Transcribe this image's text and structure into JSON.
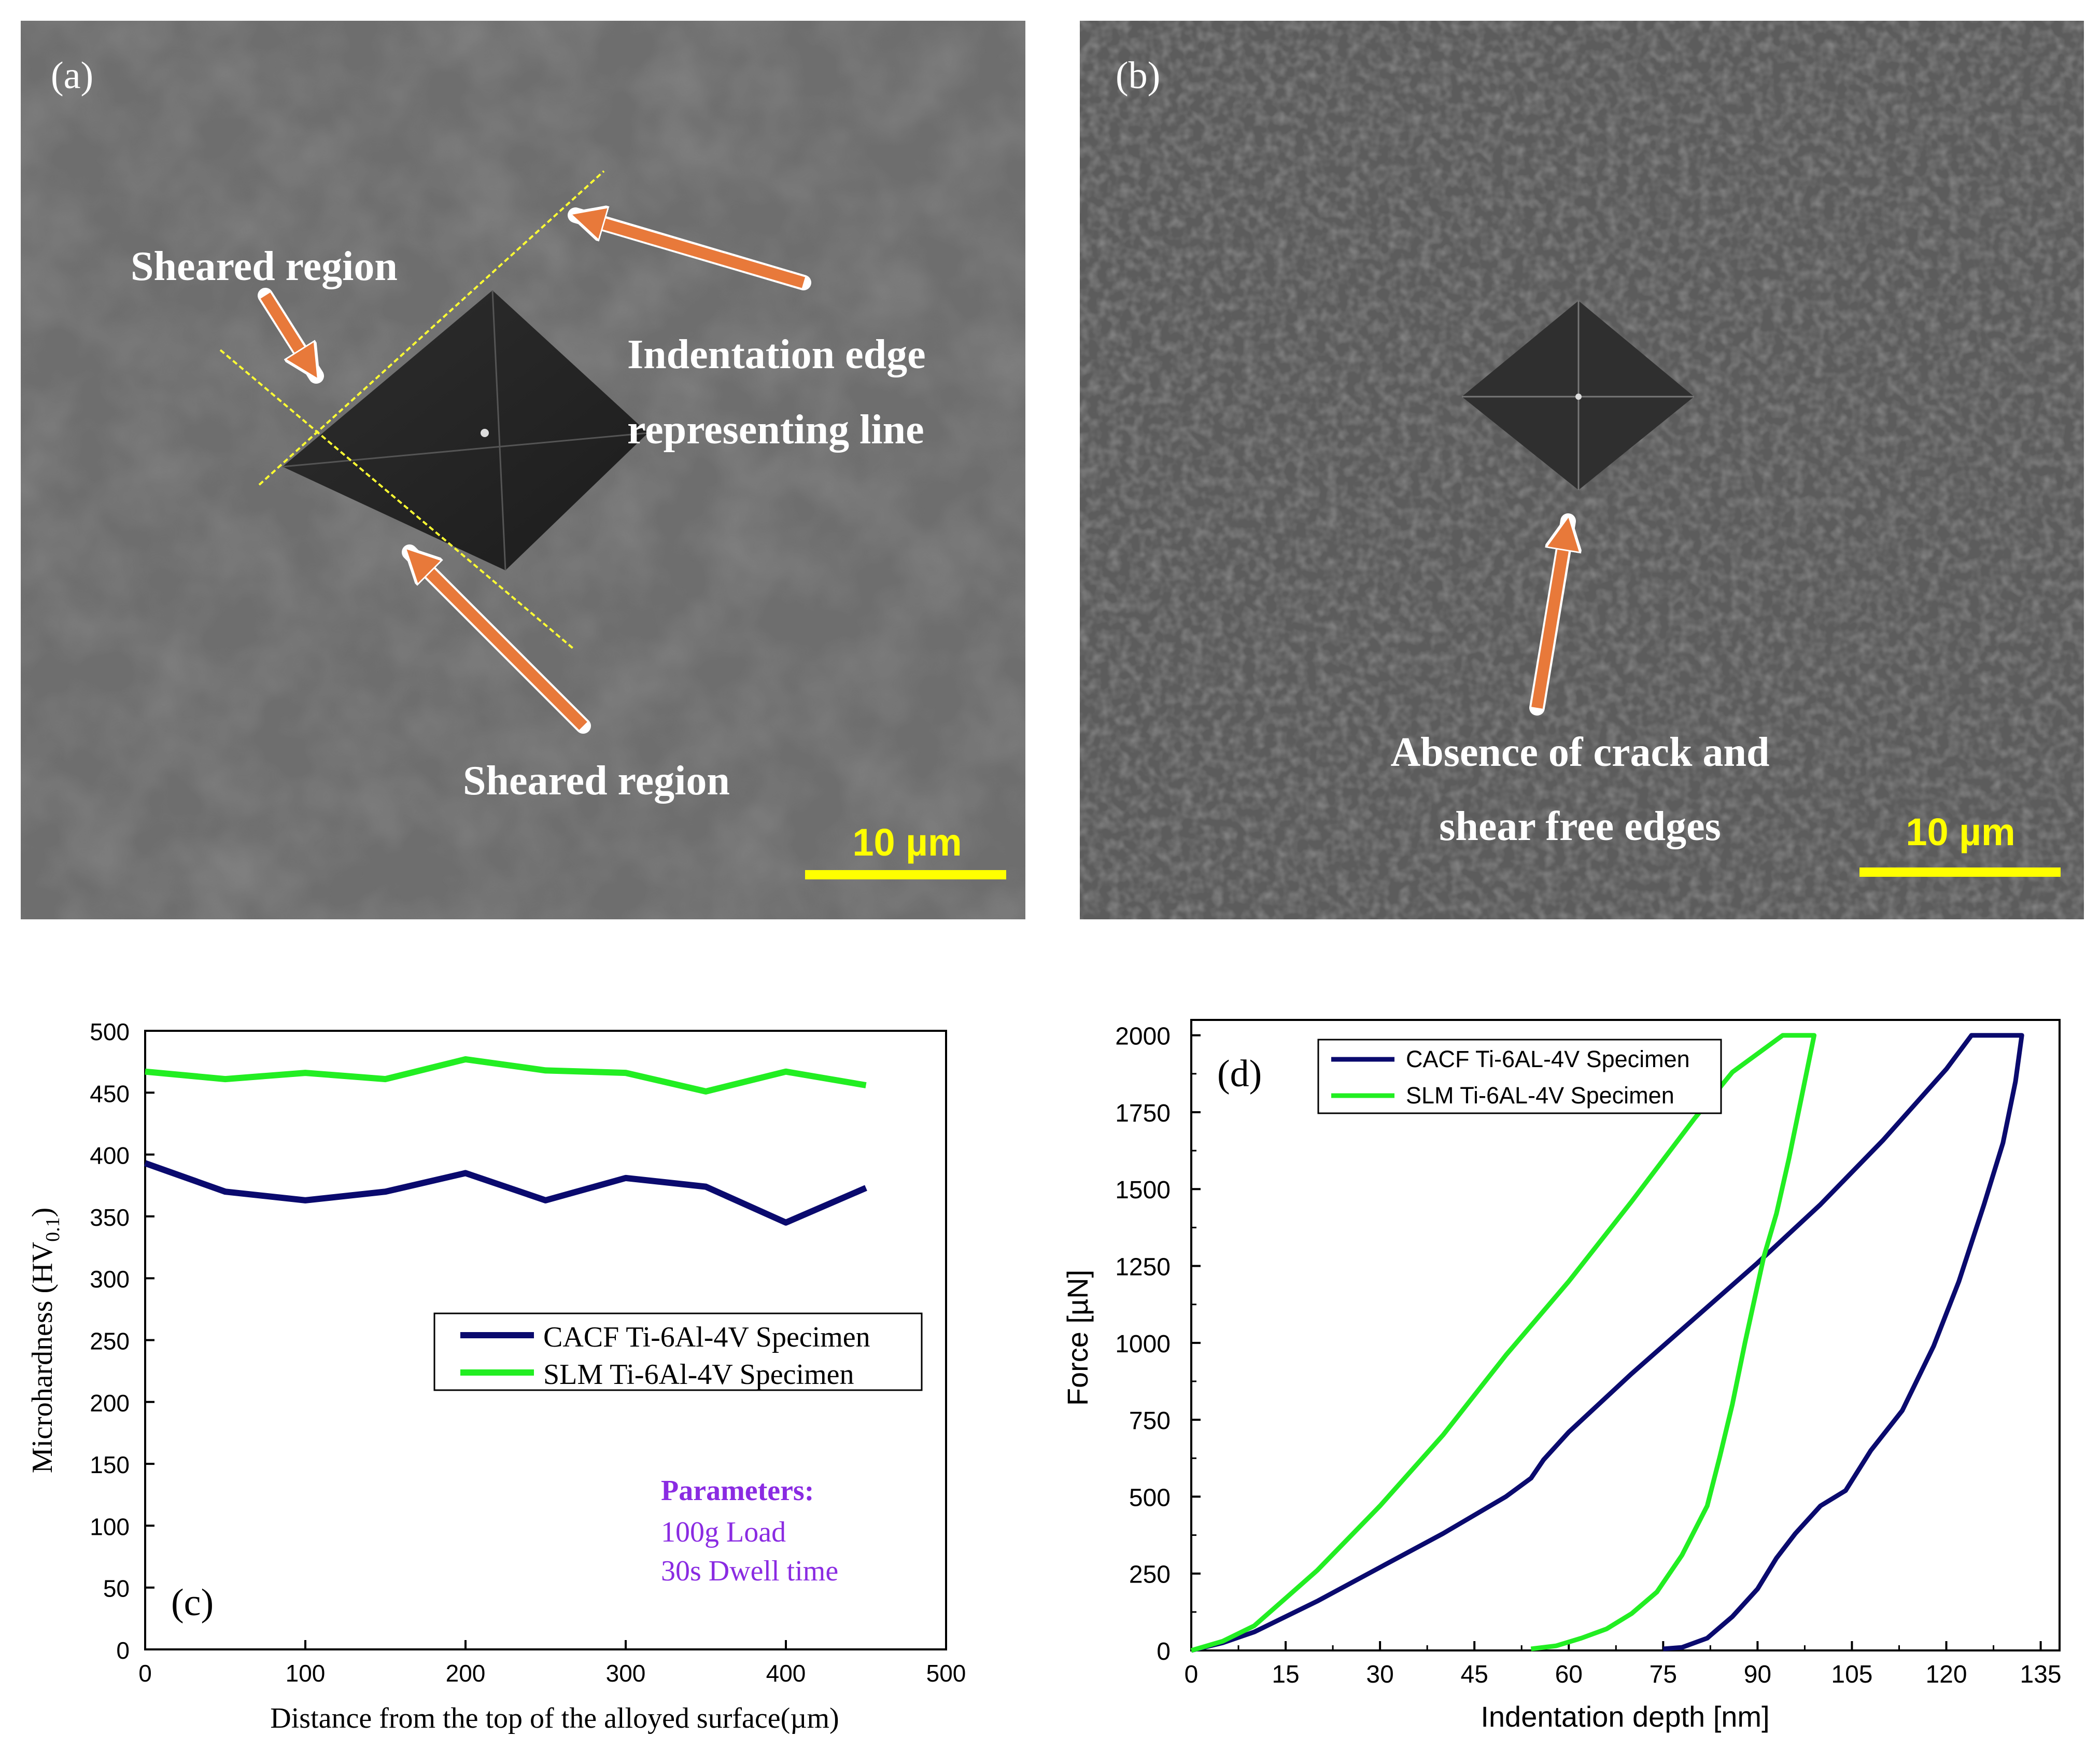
{
  "panel_a": {
    "label": "(a)",
    "annotations": {
      "sheared_top": "Sheared region",
      "edge_line_1": "Indentation edge",
      "edge_line_2": "representing line",
      "sheared_bottom": "Sheared region"
    },
    "scale_bar": "10 µm"
  },
  "panel_b": {
    "label": "(b)",
    "annotations": {
      "line_1": "Absence of crack and",
      "line_2": "shear free edges"
    },
    "scale_bar": "10 µm"
  },
  "chart_data": [
    {
      "type": "line",
      "panel_label": "(c)",
      "xlabel": "Distance from the top of the alloyed surface(µm)",
      "ylabel_main": "Microhardness (HV",
      "ylabel_sub": "0.1",
      "ylabel_close": ")",
      "xlim": [
        0,
        500
      ],
      "ylim": [
        0,
        500
      ],
      "xticks": [
        0,
        100,
        200,
        300,
        400,
        500
      ],
      "yticks": [
        0,
        50,
        100,
        150,
        200,
        250,
        300,
        350,
        400,
        450,
        500
      ],
      "legend": {
        "position": "center-right"
      },
      "series": [
        {
          "name": "CACF Ti-6Al-4V Specimen",
          "color": "#0a0a6e",
          "x": [
            0,
            50,
            100,
            150,
            200,
            250,
            300,
            350,
            400,
            450
          ],
          "y": [
            393,
            370,
            363,
            370,
            385,
            363,
            381,
            374,
            345,
            373
          ]
        },
        {
          "name": "SLM Ti-6Al-4V Specimen",
          "color": "#22ee22",
          "x": [
            0,
            50,
            100,
            150,
            200,
            250,
            300,
            350,
            400,
            450
          ],
          "y": [
            467,
            461,
            466,
            461,
            477,
            468,
            466,
            451,
            467,
            456
          ]
        }
      ],
      "parameters": {
        "title": "Parameters:",
        "line1": "100g  Load",
        "line2": "30s  Dwell time",
        "color": "#8a2be2"
      }
    },
    {
      "type": "line",
      "panel_label": "(d)",
      "xlabel": "Indentation depth [nm]",
      "ylabel": "Force [µN]",
      "xlim": [
        0,
        138
      ],
      "ylim": [
        0,
        2050
      ],
      "xticks": [
        0,
        15,
        30,
        45,
        60,
        75,
        90,
        105,
        120,
        135
      ],
      "yticks": [
        0,
        250,
        500,
        750,
        1000,
        1250,
        1500,
        1750,
        2000
      ],
      "legend": {
        "position": "top-left"
      },
      "series": [
        {
          "name": "CACF Ti-6AL-4V Specimen",
          "color": "#0a0a6e",
          "x": [
            0,
            5,
            10,
            20,
            30,
            40,
            50,
            54,
            56,
            60,
            70,
            80,
            90,
            100,
            110,
            120,
            124,
            132,
            131,
            129,
            126,
            122,
            118,
            113,
            108,
            104,
            100,
            96,
            93,
            90,
            86,
            82,
            78,
            75
          ],
          "y": [
            0,
            25,
            60,
            160,
            270,
            380,
            500,
            560,
            620,
            710,
            900,
            1080,
            1260,
            1450,
            1660,
            1890,
            2000,
            2000,
            1850,
            1650,
            1450,
            1200,
            990,
            780,
            650,
            520,
            470,
            380,
            300,
            200,
            110,
            40,
            10,
            5
          ]
        },
        {
          "name": "SLM Ti-6AL-4V Specimen",
          "color": "#22ee22",
          "x": [
            0,
            5,
            10,
            15,
            20,
            30,
            40,
            50,
            60,
            70,
            80,
            86,
            94,
            99,
            97,
            95,
            93,
            91,
            88,
            86,
            84,
            82,
            78,
            74,
            70,
            66,
            62,
            58,
            54
          ],
          "y": [
            0,
            30,
            80,
            170,
            260,
            470,
            700,
            960,
            1200,
            1460,
            1730,
            1880,
            2000,
            2000,
            1800,
            1600,
            1420,
            1280,
            1000,
            800,
            630,
            470,
            310,
            190,
            120,
            70,
            40,
            15,
            5
          ]
        }
      ]
    }
  ]
}
